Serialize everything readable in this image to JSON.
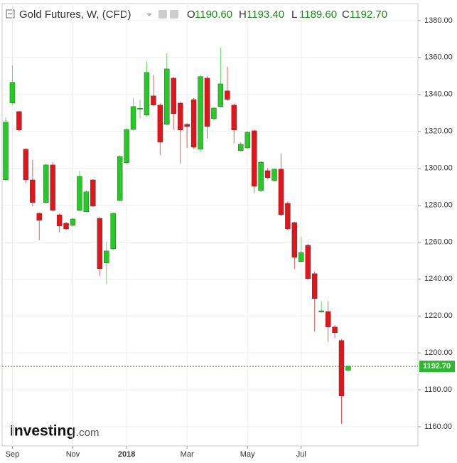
{
  "chart_data": {
    "type": "candlestick",
    "title": "Gold Futures, W, (CFD)",
    "legend_values": [
      {
        "key": "O",
        "text": "1190.60"
      },
      {
        "key": "H",
        "text": "1193.40"
      },
      {
        "key": "L",
        "text": "1189.60"
      },
      {
        "key": "C",
        "text": "1192.70"
      }
    ],
    "brand": {
      "name": "Investing",
      "suffix": ".com"
    },
    "categories": [
      null,
      "Sep",
      null,
      null,
      null,
      null,
      null,
      null,
      null,
      null,
      "Nov",
      null,
      null,
      null,
      null,
      null,
      null,
      null,
      "2018",
      null,
      null,
      null,
      null,
      null,
      null,
      null,
      null,
      "Mar",
      null,
      null,
      null,
      null,
      null,
      null,
      null,
      null,
      "May",
      null,
      null,
      null,
      null,
      null,
      null,
      null,
      "Jul",
      null,
      null,
      null,
      null,
      null,
      null,
      null
    ],
    "open": [
      1293.7,
      1335.3,
      1330.7,
      1310.3,
      1293.7,
      1275.6,
      1281.4,
      1301.8,
      1274.8,
      1270.2,
      1269.1,
      1277.2,
      1276.4,
      1293.7,
      1272.9,
      1248.7,
      1256.3,
      1282.5,
      1303,
      1321,
      1332,
      1328.8,
      1339.2,
      1334.2,
      1323.8,
      1348.8,
      1335.3,
      1323.8,
      1337.2,
      1310.3,
      1348.8,
      1326.8,
      1333.4,
      1341.9,
      1334.2,
      1309.5,
      1311,
      1320.3,
      1287.9,
      1298.7,
      1293.3,
      1299.5,
      1281,
      1270.6,
      1249.4,
      1258.3,
      1242.9,
      1222.1,
      1222.4,
      1214,
      1206.7,
      1190.6
    ],
    "high": [
      1327.6,
      1355.7,
      1331,
      1310.8,
      1304.5,
      1276,
      1302.5,
      1303.3,
      1275.5,
      1271,
      1273,
      1298.7,
      1288,
      1294,
      1273.5,
      1260.2,
      1276,
      1307,
      1322,
      1338,
      1337,
      1357.7,
      1350.5,
      1335,
      1362.3,
      1349.5,
      1336,
      1324.5,
      1338,
      1350.5,
      1350,
      1333,
      1365.4,
      1355,
      1335,
      1314,
      1320,
      1321,
      1304,
      1300,
      1300,
      1308,
      1282,
      1271,
      1263,
      1259,
      1244,
      1228,
      1228,
      1215,
      1207.5,
      1193.4
    ],
    "low": [
      1293,
      1334.5,
      1320,
      1291.8,
      1279.5,
      1261,
      1281,
      1276.5,
      1265.2,
      1266.5,
      1268.5,
      1276.5,
      1276,
      1279,
      1241.7,
      1237.1,
      1255.5,
      1282,
      1302,
      1320.5,
      1327,
      1328,
      1333.5,
      1307.2,
      1323,
      1321,
      1302.6,
      1311,
      1310.5,
      1308.5,
      1316,
      1326,
      1333,
      1336.5,
      1313.5,
      1309,
      1310.5,
      1286.5,
      1287,
      1294,
      1292.5,
      1274,
      1266.5,
      1245.5,
      1249,
      1239.5,
      1211.7,
      1221.5,
      1206,
      1208,
      1161.6,
      1189.6
    ],
    "close": [
      1325,
      1346.5,
      1320.7,
      1293.7,
      1281.4,
      1271.8,
      1301.8,
      1277.2,
      1268.7,
      1267.1,
      1272.5,
      1295.6,
      1287.2,
      1279.5,
      1245.6,
      1255.2,
      1275.6,
      1306.4,
      1321,
      1333.4,
      1332.5,
      1351.9,
      1334.2,
      1314.1,
      1353.8,
      1329.5,
      1320.7,
      1322.6,
      1311.4,
      1349.6,
      1322.6,
      1332.6,
      1345.7,
      1337.2,
      1320.7,
      1313,
      1319.5,
      1290.2,
      1303.3,
      1294.9,
      1299.5,
      1274.8,
      1267.1,
      1251.7,
      1254.4,
      1240.2,
      1229.4,
      1222.8,
      1214,
      1210.9,
      1176.6,
      1192.7
    ],
    "up_color": "#22cc22",
    "down_color": "#e3151a",
    "ylim": [
      1149.6,
      1389.2
    ],
    "yticks": [
      {
        "value": 1160,
        "label": "1160.00"
      },
      {
        "value": 1180,
        "label": "1180.00"
      },
      {
        "value": 1200,
        "label": "1200.00"
      },
      {
        "value": 1220,
        "label": "1220.00"
      },
      {
        "value": 1240,
        "label": "1240.00"
      },
      {
        "value": 1260,
        "label": "1260.00"
      },
      {
        "value": 1280,
        "label": "1280.00"
      },
      {
        "value": 1300,
        "label": "1300.00"
      },
      {
        "value": 1320,
        "label": "1320.00"
      },
      {
        "value": 1340,
        "label": "1340.00"
      },
      {
        "value": 1360,
        "label": "1360.00"
      },
      {
        "value": 1380,
        "label": "1380.00"
      }
    ],
    "last_price": {
      "value": 1192.7,
      "label": "1192.70"
    },
    "grid": true
  }
}
